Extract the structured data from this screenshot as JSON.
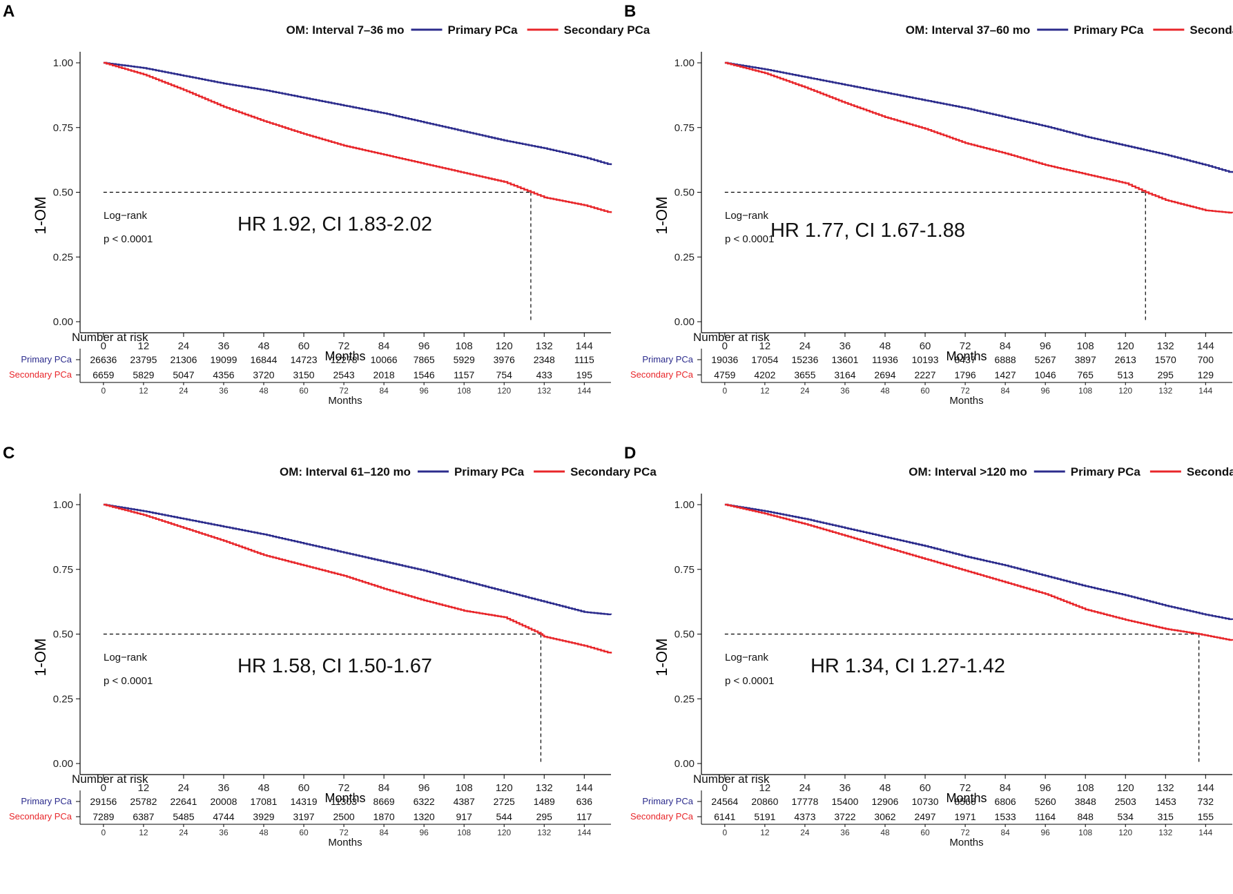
{
  "colors": {
    "primary": "#2b2b8c",
    "secondary": "#e8262a",
    "axis": "#000000"
  },
  "months_ticks": [
    0,
    12,
    24,
    36,
    48,
    60,
    72,
    84,
    96,
    108,
    120,
    132,
    144
  ],
  "y_ticks": [
    "0.00",
    "0.25",
    "0.50",
    "0.75",
    "1.00"
  ],
  "chart_data": [
    {
      "type": "line",
      "panel": "A",
      "title": "OM: Interval 7–36 mo",
      "legend": [
        "Primary PCa",
        "Secondary PCa"
      ],
      "xlabel": "Months",
      "ylabel": "1-OM",
      "xlim": [
        -7,
        152
      ],
      "ylim": [
        0,
        1
      ],
      "median_line": {
        "y": 0.5,
        "x": 128
      },
      "logrank_label": "Log−rank",
      "pvalue": "p < 0.0001",
      "hr_text": "HR 1.92, CI 1.83-2.02",
      "series": [
        {
          "name": "Primary PCa",
          "x": [
            0,
            12,
            24,
            36,
            48,
            60,
            72,
            84,
            96,
            108,
            120,
            132,
            144,
            152
          ],
          "y": [
            1.0,
            0.98,
            0.95,
            0.92,
            0.895,
            0.865,
            0.835,
            0.805,
            0.77,
            0.735,
            0.7,
            0.67,
            0.635,
            0.605
          ]
        },
        {
          "name": "Secondary PCa",
          "x": [
            0,
            12,
            24,
            36,
            48,
            60,
            72,
            84,
            96,
            108,
            120,
            128,
            132,
            144,
            152
          ],
          "y": [
            1.0,
            0.955,
            0.895,
            0.83,
            0.775,
            0.725,
            0.68,
            0.645,
            0.61,
            0.575,
            0.54,
            0.5,
            0.48,
            0.45,
            0.42
          ]
        }
      ],
      "risk_table": {
        "title": "Number at risk",
        "xlabel": "Months",
        "rows": [
          {
            "label": "Primary PCa",
            "values": [
              "26636",
              "23795",
              "21306",
              "19099",
              "16844",
              "14723",
              "12278",
              "10066",
              "7865",
              "5929",
              "3976",
              "2348",
              "1115"
            ]
          },
          {
            "label": "Secondary PCa",
            "values": [
              "6659",
              "5829",
              "5047",
              "4356",
              "3720",
              "3150",
              "2543",
              "2018",
              "1546",
              "1157",
              "754",
              "433",
              "195"
            ]
          }
        ]
      }
    },
    {
      "type": "line",
      "panel": "B",
      "title": "OM: Interval 37–60 mo",
      "legend": [
        "Primary PCa",
        "Secondary PCa"
      ],
      "xlabel": "Months",
      "ylabel": "1-OM",
      "xlim": [
        -7,
        152
      ],
      "ylim": [
        0,
        1
      ],
      "median_line": {
        "y": 0.5,
        "x": 126
      },
      "logrank_label": "Log−rank",
      "pvalue": "p < 0.0001",
      "hr_text": "HR 1.77, CI 1.67-1.88",
      "series": [
        {
          "name": "Primary PCa",
          "x": [
            0,
            12,
            24,
            36,
            48,
            60,
            72,
            84,
            96,
            108,
            120,
            132,
            144,
            152
          ],
          "y": [
            1.0,
            0.975,
            0.945,
            0.915,
            0.885,
            0.855,
            0.825,
            0.79,
            0.755,
            0.715,
            0.68,
            0.645,
            0.605,
            0.575
          ]
        },
        {
          "name": "Secondary PCa",
          "x": [
            0,
            12,
            24,
            36,
            48,
            60,
            72,
            84,
            96,
            108,
            120,
            126,
            132,
            144,
            152
          ],
          "y": [
            1.0,
            0.96,
            0.905,
            0.845,
            0.79,
            0.745,
            0.69,
            0.65,
            0.605,
            0.57,
            0.535,
            0.5,
            0.47,
            0.43,
            0.42
          ]
        }
      ],
      "risk_table": {
        "title": "Number at risk",
        "xlabel": "Months",
        "rows": [
          {
            "label": "Primary PCa",
            "values": [
              "19036",
              "17054",
              "15236",
              "13601",
              "11936",
              "10193",
              "8437",
              "6888",
              "5267",
              "3897",
              "2613",
              "1570",
              "700"
            ]
          },
          {
            "label": "Secondary PCa",
            "values": [
              "4759",
              "4202",
              "3655",
              "3164",
              "2694",
              "2227",
              "1796",
              "1427",
              "1046",
              "765",
              "513",
              "295",
              "129"
            ]
          }
        ]
      }
    },
    {
      "type": "line",
      "panel": "C",
      "title": "OM: Interval 61–120 mo",
      "legend": [
        "Primary PCa",
        "Secondary PCa"
      ],
      "xlabel": "Months",
      "ylabel": "1-OM",
      "xlim": [
        -7,
        152
      ],
      "ylim": [
        0,
        1
      ],
      "median_line": {
        "y": 0.5,
        "x": 131
      },
      "logrank_label": "Log−rank",
      "pvalue": "p < 0.0001",
      "hr_text": "HR 1.58, CI 1.50-1.67",
      "series": [
        {
          "name": "Primary PCa",
          "x": [
            0,
            12,
            24,
            36,
            48,
            60,
            72,
            84,
            96,
            108,
            120,
            132,
            144,
            152
          ],
          "y": [
            1.0,
            0.975,
            0.945,
            0.915,
            0.885,
            0.85,
            0.815,
            0.78,
            0.745,
            0.705,
            0.665,
            0.625,
            0.585,
            0.575
          ]
        },
        {
          "name": "Secondary PCa",
          "x": [
            0,
            12,
            24,
            36,
            48,
            60,
            72,
            84,
            96,
            108,
            120,
            131,
            132,
            144,
            152
          ],
          "y": [
            1.0,
            0.96,
            0.91,
            0.86,
            0.805,
            0.765,
            0.725,
            0.675,
            0.63,
            0.59,
            0.565,
            0.5,
            0.49,
            0.455,
            0.425
          ]
        }
      ],
      "risk_table": {
        "title": "Number at risk",
        "xlabel": "Months",
        "rows": [
          {
            "label": "Primary PCa",
            "values": [
              "29156",
              "25782",
              "22641",
              "20008",
              "17081",
              "14319",
              "11303",
              "8669",
              "6322",
              "4387",
              "2725",
              "1489",
              "636"
            ]
          },
          {
            "label": "Secondary PCa",
            "values": [
              "7289",
              "6387",
              "5485",
              "4744",
              "3929",
              "3197",
              "2500",
              "1870",
              "1320",
              "917",
              "544",
              "295",
              "117"
            ]
          }
        ]
      }
    },
    {
      "type": "line",
      "panel": "D",
      "title": "OM: Interval >120 mo",
      "legend": [
        "Primary PCa",
        "Secondary PCa"
      ],
      "xlabel": "Months",
      "ylabel": "1-OM",
      "xlim": [
        -7,
        152
      ],
      "ylim": [
        0,
        1
      ],
      "median_line": {
        "y": 0.5,
        "x": 142
      },
      "logrank_label": "Log−rank",
      "pvalue": "p < 0.0001",
      "hr_text": "HR 1.34, CI 1.27-1.42",
      "series": [
        {
          "name": "Primary PCa",
          "x": [
            0,
            12,
            24,
            36,
            48,
            60,
            72,
            84,
            96,
            108,
            120,
            132,
            144,
            152
          ],
          "y": [
            1.0,
            0.975,
            0.945,
            0.91,
            0.875,
            0.84,
            0.8,
            0.765,
            0.725,
            0.685,
            0.65,
            0.61,
            0.575,
            0.555
          ]
        },
        {
          "name": "Secondary PCa",
          "x": [
            0,
            12,
            24,
            36,
            48,
            60,
            72,
            84,
            96,
            108,
            120,
            132,
            142,
            152
          ],
          "y": [
            1.0,
            0.965,
            0.925,
            0.88,
            0.835,
            0.79,
            0.745,
            0.7,
            0.655,
            0.595,
            0.555,
            0.52,
            0.5,
            0.475
          ]
        }
      ],
      "risk_table": {
        "title": "Number at risk",
        "xlabel": "Months",
        "rows": [
          {
            "label": "Primary PCa",
            "values": [
              "24564",
              "20860",
              "17778",
              "15400",
              "12906",
              "10730",
              "8566",
              "6806",
              "5260",
              "3848",
              "2503",
              "1453",
              "732"
            ]
          },
          {
            "label": "Secondary PCa",
            "values": [
              "6141",
              "5191",
              "4373",
              "3722",
              "3062",
              "2497",
              "1971",
              "1533",
              "1164",
              "848",
              "534",
              "315",
              "155"
            ]
          }
        ]
      }
    }
  ]
}
